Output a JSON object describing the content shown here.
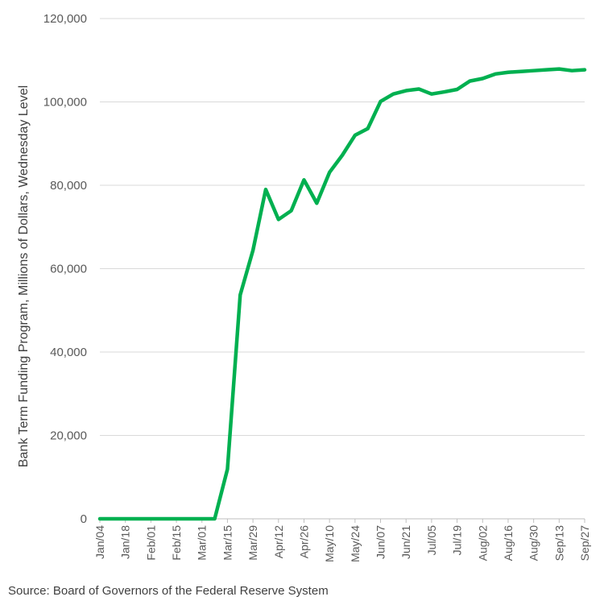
{
  "chart_data": {
    "type": "line",
    "ylabel": "Bank Term Funding Program, Millions of Dollars, Wednesday Level",
    "xlabel": "",
    "ylim": [
      0,
      120000
    ],
    "y_ticks": [
      "0",
      "20,000",
      "40,000",
      "60,000",
      "80,000",
      "100,000",
      "120,000"
    ],
    "y_tick_values": [
      0,
      20000,
      40000,
      60000,
      80000,
      100000,
      120000
    ],
    "x_tick_labels": [
      "Jan/04",
      "Jan/18",
      "Feb/01",
      "Feb/15",
      "Mar/01",
      "Mar/15",
      "Mar/29",
      "Apr/12",
      "Apr/26",
      "May/10",
      "May/24",
      "Jun/07",
      "Jun/21",
      "Jul/05",
      "Jul/19",
      "Aug/02",
      "Aug/16",
      "Aug/30",
      "Sep/13",
      "Sep/27"
    ],
    "grid": true,
    "legend": "none",
    "color": "#00b050",
    "series": [
      {
        "x": [
          "Jan/04",
          "Jan/11",
          "Jan/18",
          "Jan/25",
          "Feb/01",
          "Feb/08",
          "Feb/15",
          "Feb/22",
          "Mar/01",
          "Mar/08",
          "Mar/15",
          "Mar/22",
          "Mar/29",
          "Apr/05",
          "Apr/12",
          "Apr/19",
          "Apr/26",
          "May/03",
          "May/10",
          "May/17",
          "May/24",
          "May/31",
          "Jun/07",
          "Jun/14",
          "Jun/21",
          "Jun/28",
          "Jul/05",
          "Jul/12",
          "Jul/19",
          "Jul/26",
          "Aug/02",
          "Aug/09",
          "Aug/16",
          "Aug/23",
          "Aug/30",
          "Sep/06",
          "Sep/13",
          "Sep/20",
          "Sep/27"
        ],
        "values": [
          0,
          0,
          0,
          0,
          0,
          0,
          0,
          0,
          0,
          0,
          11900,
          53700,
          64400,
          79000,
          71800,
          73900,
          81300,
          75700,
          83100,
          87200,
          92000,
          93600,
          100100,
          101900,
          102700,
          103100,
          101900,
          102400,
          103000,
          105000,
          105600,
          106700,
          107100,
          107300,
          107500,
          107700,
          107900,
          107500,
          107700
        ]
      }
    ]
  },
  "source_text": "Source: Board of Governors of the Federal Reserve System"
}
